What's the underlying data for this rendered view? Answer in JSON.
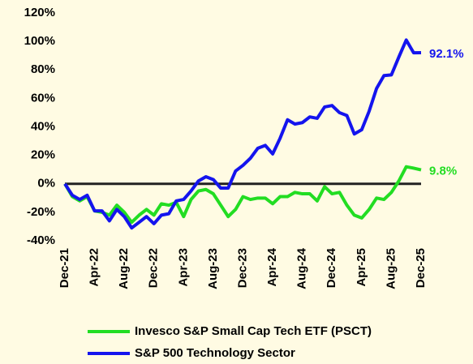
{
  "chart_data": {
    "type": "line",
    "categories": [
      "Dec-21",
      null,
      null,
      null,
      "Apr-22",
      null,
      null,
      null,
      "Aug-22",
      null,
      null,
      null,
      "Dec-22",
      null,
      null,
      null,
      "Apr-23",
      null,
      null,
      null,
      "Aug-23",
      null,
      null,
      null,
      "Dec-23",
      null,
      null,
      null,
      "Apr-24",
      null,
      null,
      null,
      "Aug-24",
      null,
      null,
      null,
      "Dec-24",
      null,
      null,
      null,
      "Apr-25",
      null,
      null,
      null,
      "Aug-25",
      null,
      null,
      null,
      "Dec-25"
    ],
    "series": [
      {
        "name": "Invesco S&P Small Cap Tech ETF (PSCT)",
        "color": "#22dd22",
        "values": [
          0,
          -9,
          -12,
          -9,
          -19,
          -20,
          -22,
          -15,
          -20,
          -27,
          -22,
          -18,
          -22,
          -14,
          -15,
          -13,
          -23,
          -11,
          -5,
          -4,
          -7,
          -15,
          -23,
          -18,
          -9,
          -11,
          -10,
          -10,
          -14,
          -9,
          -9,
          -6,
          -7,
          -7,
          -12,
          -2,
          -7,
          -6,
          -15,
          -22,
          -24,
          -18,
          -10,
          -11,
          -6,
          2,
          12,
          11,
          9.8
        ],
        "value_labels": [
          null,
          null,
          null,
          null,
          null,
          null,
          null,
          null,
          null,
          null,
          null,
          null,
          null,
          null,
          null,
          null,
          null,
          null,
          null,
          null,
          null,
          null,
          null,
          null,
          null,
          null,
          null,
          null,
          null,
          null,
          null,
          null,
          null,
          null,
          null,
          null,
          null,
          null,
          null,
          null,
          null,
          null,
          null,
          null,
          null,
          null,
          null,
          null,
          "9.8%"
        ]
      },
      {
        "name": "S&P 500 Technology Sector",
        "color": "#1414ee",
        "values": [
          0,
          -8,
          -11,
          -8,
          -19,
          -19,
          -26,
          -18,
          -23,
          -31,
          -27,
          -23,
          -28,
          -22,
          -21,
          -12,
          -11,
          -5,
          2,
          5,
          3,
          -3,
          -3,
          9,
          13,
          18,
          25,
          27,
          21,
          32,
          45,
          42,
          43,
          47,
          46,
          54,
          55,
          50,
          48,
          35,
          38,
          51,
          67,
          76,
          76.5,
          89,
          101,
          92,
          92.1
        ],
        "value_labels": [
          null,
          null,
          null,
          null,
          null,
          null,
          null,
          null,
          null,
          null,
          null,
          null,
          null,
          null,
          null,
          null,
          null,
          null,
          null,
          null,
          null,
          null,
          null,
          null,
          null,
          null,
          null,
          null,
          null,
          null,
          null,
          null,
          null,
          null,
          null,
          null,
          null,
          null,
          null,
          null,
          null,
          null,
          null,
          null,
          null,
          null,
          null,
          null,
          "92.1%"
        ]
      }
    ],
    "ylim": [
      -40,
      120
    ],
    "yticks": [
      {
        "value": -40,
        "label": "-40%"
      },
      {
        "value": -20,
        "label": "-20%"
      },
      {
        "value": 0,
        "label": "0%"
      },
      {
        "value": 20,
        "label": "20%"
      },
      {
        "value": 40,
        "label": "40%"
      },
      {
        "value": 60,
        "label": "60%"
      },
      {
        "value": 80,
        "label": "80%"
      },
      {
        "value": 100,
        "label": "100%"
      },
      {
        "value": 120,
        "label": "120%"
      }
    ],
    "grid": false
  }
}
